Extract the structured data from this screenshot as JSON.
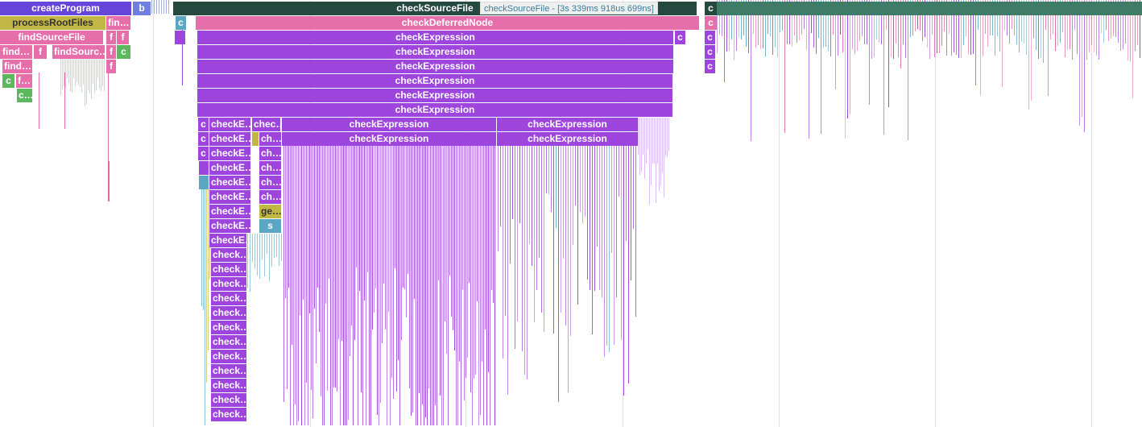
{
  "labels": [
    "createProgram",
    "b",
    "checkSourceFile",
    "c",
    "processRootFiles",
    "fin…",
    "checkDeferredNode",
    "findSourceFile",
    "f",
    "checkExpression",
    "find…",
    "findSourc…",
    "f…",
    "c…",
    "checkE…",
    "chec…",
    "ch…",
    "ge…",
    "s",
    "check…"
  ],
  "tooltip": "checkSourceFile - [3s 339ms 918us 699ns]",
  "colors": {
    "createProgram": "#6645db",
    "b": "#6f7fe0",
    "checkSourceFile": "#26493f",
    "stripes_top": "#3f7c68",
    "olive": "#c2b744",
    "pink": "#e66fab",
    "green": "#5bb85d",
    "teal": "#5aa6c4",
    "purple": "#9e45dd"
  }
}
